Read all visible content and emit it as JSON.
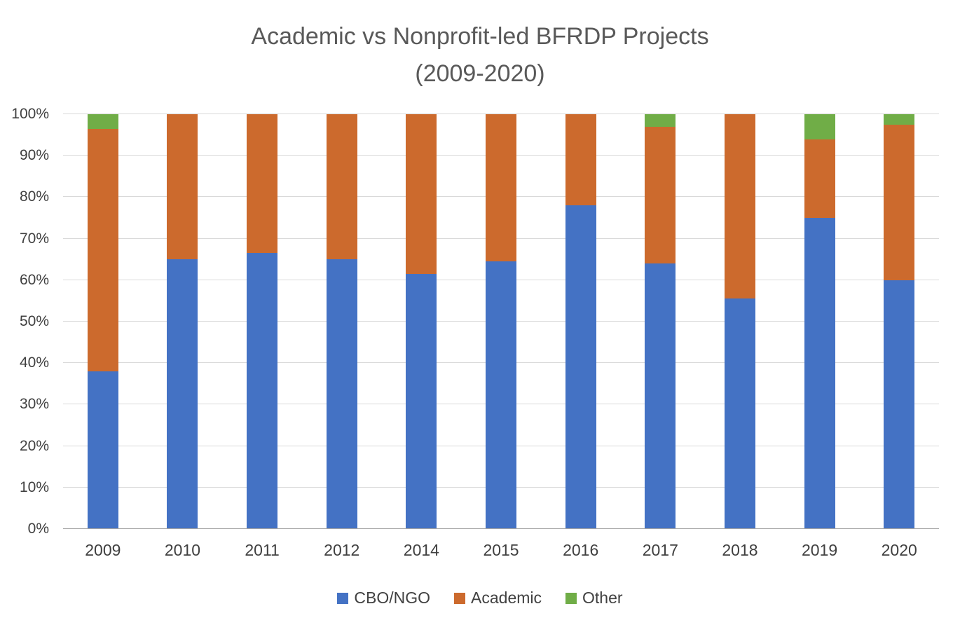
{
  "title": {
    "line1": "Academic vs Nonprofit-led BFRDP Projects",
    "line2": "(2009-2020)"
  },
  "chart_data": {
    "type": "bar",
    "stacked": true,
    "title": "Academic vs Nonprofit-led BFRDP Projects (2009-2020)",
    "xlabel": "",
    "ylabel": "",
    "ylim": [
      0,
      100
    ],
    "ytick_step": 10,
    "ytick_labels": [
      "0%",
      "10%",
      "20%",
      "30%",
      "40%",
      "50%",
      "60%",
      "70%",
      "80%",
      "90%",
      "100%"
    ],
    "grid": true,
    "legend_position": "bottom",
    "categories": [
      "2009",
      "2010",
      "2011",
      "2012",
      "2014",
      "2015",
      "2016",
      "2017",
      "2018",
      "2019",
      "2020"
    ],
    "series": [
      {
        "name": "CBO/NGO",
        "color": "#4472C4",
        "values": [
          38,
          65,
          66.5,
          65,
          61.5,
          64.5,
          78,
          64,
          55.5,
          75,
          60
        ]
      },
      {
        "name": "Academic",
        "color": "#CC6A2D",
        "values": [
          58.5,
          35,
          33.5,
          35,
          38.5,
          35.5,
          22,
          33,
          44.5,
          19,
          37.5
        ]
      },
      {
        "name": "Other",
        "color": "#70AD47",
        "values": [
          3.5,
          0,
          0,
          0,
          0,
          0,
          0,
          3,
          0,
          6,
          2.5
        ]
      }
    ]
  },
  "colors": {
    "title_text": "#595959",
    "axis_text": "#404040",
    "gridline": "#D9D9D9",
    "baseline": "#A6A6A6",
    "background": "#FFFFFF"
  }
}
